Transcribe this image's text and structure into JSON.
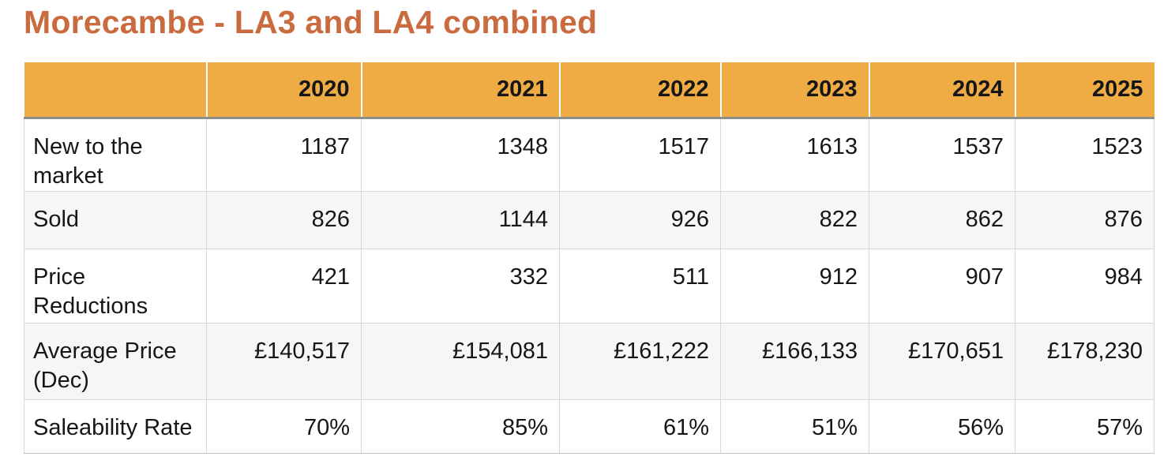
{
  "title": "Morecambe - LA3 and LA4 combined",
  "colors": {
    "title_text": "#c96b3e",
    "header_bg": "#efab44",
    "header_divider": "#ffffff",
    "header_bottom_border": "#8e8e8e",
    "alt_row_bg": "#f6f6f4",
    "cell_border": "#d7d7d4",
    "body_text": "#161616"
  },
  "table": {
    "years": [
      "2020",
      "2021",
      "2022",
      "2023",
      "2024",
      "2025"
    ],
    "rows": [
      {
        "label": "New to the market",
        "values": [
          "1187",
          "1348",
          "1517",
          "1613",
          "1537",
          "1523"
        ]
      },
      {
        "label": "Sold",
        "values": [
          "826",
          "1144",
          "926",
          "822",
          "862",
          "876"
        ]
      },
      {
        "label": "Price Reductions",
        "values": [
          "421",
          "332",
          "511",
          "912",
          "907",
          "984"
        ]
      },
      {
        "label": "Average Price (Dec)",
        "values": [
          "£140,517",
          "£154,081",
          "£161,222",
          "£166,133",
          "£170,651",
          "£178,230"
        ]
      },
      {
        "label": "Saleability Rate",
        "values": [
          "70%",
          "85%",
          "61%",
          "51%",
          "56%",
          "57%"
        ]
      }
    ]
  },
  "chart_data": {
    "type": "table",
    "title": "Morecambe - LA3 and LA4 combined",
    "categories": [
      "2020",
      "2021",
      "2022",
      "2023",
      "2024",
      "2025"
    ],
    "series": [
      {
        "name": "New to the market",
        "values": [
          1187,
          1348,
          1517,
          1613,
          1537,
          1523
        ]
      },
      {
        "name": "Sold",
        "values": [
          826,
          1144,
          926,
          822,
          862,
          876
        ]
      },
      {
        "name": "Price Reductions",
        "values": [
          421,
          332,
          511,
          912,
          907,
          984
        ]
      },
      {
        "name": "Average Price (Dec)",
        "values": [
          140517,
          154081,
          161222,
          166133,
          170651,
          178230
        ],
        "unit": "GBP"
      },
      {
        "name": "Saleability Rate",
        "values": [
          70,
          85,
          61,
          51,
          56,
          57
        ],
        "unit": "%"
      }
    ]
  }
}
